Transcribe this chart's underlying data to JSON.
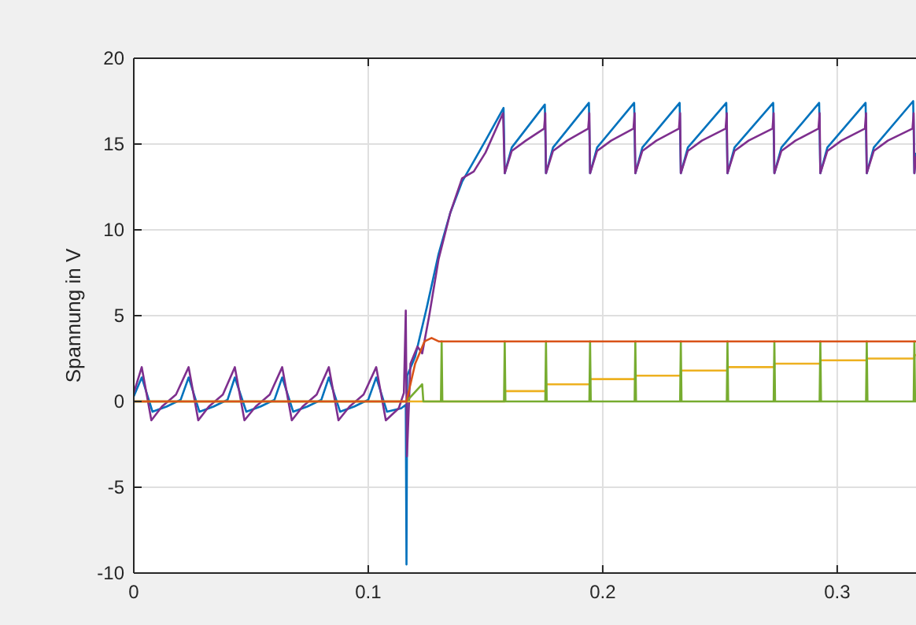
{
  "chart_data": {
    "type": "line",
    "ylabel": "Spannung in V",
    "xlim": [
      0,
      0.3336
    ],
    "ylim": [
      -10,
      20
    ],
    "xticks": [
      0,
      0.1,
      0.2,
      0.3
    ],
    "yticks": [
      -10,
      -5,
      0,
      5,
      10,
      15,
      20
    ],
    "grid": true,
    "marker": "none",
    "line_style": "solid",
    "series": [
      {
        "color": "#0072bd",
        "x": [
          0,
          0.0034,
          0.008,
          0.014,
          0.02,
          0.0234,
          0.028,
          0.034,
          0.04,
          0.0431,
          0.048,
          0.054,
          0.06,
          0.0633,
          0.068,
          0.074,
          0.08,
          0.0832,
          0.088,
          0.094,
          0.1,
          0.1034,
          0.108,
          0.114,
          0.116,
          0.1163,
          0.1166,
          0.12,
          0.125,
          0.13,
          0.135,
          0.14,
          0.145,
          0.15,
          0.1577,
          0.1582,
          0.1612,
          0.1753,
          0.1758,
          0.1788,
          0.1941,
          0.1946,
          0.1976,
          0.2134,
          0.2139,
          0.2169,
          0.2328,
          0.2333,
          0.2363,
          0.2527,
          0.2532,
          0.2562,
          0.2727,
          0.2732,
          0.2762,
          0.2923,
          0.2928,
          0.2958,
          0.3121,
          0.3126,
          0.3156,
          0.3324,
          0.3329,
          0.3336
        ],
        "values": [
          0.3,
          1.4,
          -0.6,
          -0.3,
          0.1,
          1.4,
          -0.6,
          -0.3,
          0.1,
          1.4,
          -0.6,
          -0.3,
          0.1,
          1.4,
          -0.6,
          -0.3,
          0.1,
          1.4,
          -0.6,
          -0.3,
          0.1,
          1.4,
          -0.6,
          -0.4,
          -0.2,
          -9.5,
          1.5,
          2.6,
          5.5,
          8.6,
          11,
          12.8,
          14,
          15.2,
          17.1,
          13.3,
          14.8,
          17.3,
          13.3,
          14.8,
          17.4,
          13.3,
          14.8,
          17.4,
          13.3,
          14.8,
          17.4,
          13.3,
          14.8,
          17.4,
          13.3,
          14.8,
          17.4,
          13.3,
          14.8,
          17.4,
          13.3,
          14.8,
          17.4,
          13.3,
          14.8,
          17.5,
          13.3,
          14.5
        ]
      },
      {
        "color": "#7e2f8e",
        "x": [
          0,
          0.0034,
          0.0075,
          0.012,
          0.018,
          0.0234,
          0.0275,
          0.032,
          0.038,
          0.0431,
          0.0472,
          0.052,
          0.058,
          0.0633,
          0.0674,
          0.072,
          0.078,
          0.0832,
          0.0873,
          0.092,
          0.098,
          0.1034,
          0.1075,
          0.113,
          0.1152,
          0.116,
          0.1165,
          0.118,
          0.121,
          0.123,
          0.126,
          0.13,
          0.135,
          0.14,
          0.145,
          0.15,
          0.1575,
          0.1582,
          0.1612,
          0.1672,
          0.175,
          0.1755,
          0.1758,
          0.1788,
          0.1848,
          0.1938,
          0.1943,
          0.1946,
          0.1976,
          0.2036,
          0.2131,
          0.2136,
          0.2139,
          0.2169,
          0.2229,
          0.2325,
          0.233,
          0.2333,
          0.2363,
          0.2423,
          0.2524,
          0.2529,
          0.2532,
          0.2562,
          0.2622,
          0.2724,
          0.2729,
          0.2732,
          0.2762,
          0.2822,
          0.292,
          0.2925,
          0.2928,
          0.2958,
          0.3018,
          0.3118,
          0.3123,
          0.3126,
          0.3156,
          0.3216,
          0.3321,
          0.3326,
          0.3329,
          0.3336
        ],
        "values": [
          0.5,
          2.0,
          -1.1,
          -0.3,
          0.4,
          2.0,
          -1.1,
          -0.3,
          0.4,
          2.0,
          -1.1,
          -0.3,
          0.4,
          2.0,
          -1.1,
          -0.3,
          0.4,
          2.0,
          -1.1,
          -0.3,
          0.4,
          2.0,
          -1.1,
          -0.4,
          0.5,
          5.3,
          -3.2,
          2.2,
          3.2,
          2.8,
          5.0,
          8.3,
          11,
          13,
          13.4,
          14.5,
          16.8,
          13.3,
          14.6,
          15.2,
          15.9,
          16.8,
          13.3,
          14.6,
          15.2,
          15.9,
          16.8,
          13.3,
          14.6,
          15.2,
          15.9,
          16.8,
          13.3,
          14.6,
          15.2,
          15.9,
          16.8,
          13.3,
          14.6,
          15.2,
          15.9,
          16.8,
          13.3,
          14.6,
          15.2,
          15.9,
          16.8,
          13.3,
          14.6,
          15.2,
          15.9,
          16.8,
          13.3,
          14.6,
          15.2,
          15.9,
          16.8,
          13.3,
          14.6,
          15.2,
          15.9,
          16.8,
          13.3,
          14.3
        ]
      },
      {
        "type": "step",
        "color": "#edb120",
        "x": [
          0,
          0.1582,
          0.1758,
          0.1946,
          0.2139,
          0.2333,
          0.2532,
          0.2732,
          0.2928,
          0.3126,
          0.3329,
          0.3336
        ],
        "values": [
          0,
          0.6,
          1.0,
          1.3,
          1.5,
          1.8,
          2.0,
          2.2,
          2.4,
          2.5,
          2.7,
          2.7
        ]
      },
      {
        "color": "#77ac30",
        "x": [
          0,
          0.1163,
          0.123,
          0.1235,
          0.131,
          0.1313,
          0.1316,
          0.1579,
          0.1582,
          0.1585,
          0.1755,
          0.1758,
          0.1761,
          0.1943,
          0.1946,
          0.1949,
          0.2136,
          0.2139,
          0.2142,
          0.233,
          0.2333,
          0.2336,
          0.2529,
          0.2532,
          0.2535,
          0.2729,
          0.2732,
          0.2735,
          0.2925,
          0.2928,
          0.2931,
          0.3123,
          0.3126,
          0.3129,
          0.3326,
          0.3329,
          0.3332,
          0.3336
        ],
        "values": [
          0,
          0,
          1.0,
          0,
          0,
          3.5,
          0,
          0,
          3.5,
          0,
          0,
          3.5,
          0,
          0,
          3.5,
          0,
          0,
          3.5,
          0,
          0,
          3.5,
          0,
          0,
          3.5,
          0,
          0,
          3.5,
          0,
          0,
          3.5,
          0,
          0,
          3.5,
          0,
          0,
          3.5,
          0,
          0
        ]
      },
      {
        "color": "#d95319",
        "x": [
          0,
          0.1163,
          0.12,
          0.124,
          0.127,
          0.13,
          0.3336
        ],
        "values": [
          0,
          0,
          2.2,
          3.5,
          3.7,
          3.5,
          3.5
        ]
      }
    ]
  }
}
